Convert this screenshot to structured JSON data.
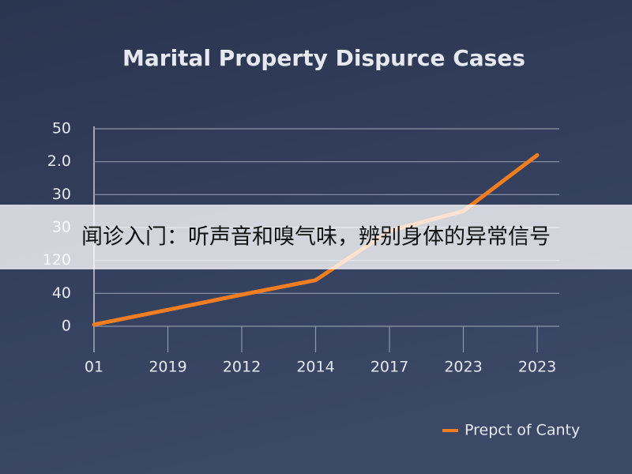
{
  "chart_data": {
    "type": "line",
    "title": "Marital Property Dispurce Cases",
    "categories": [
      "01",
      "2019",
      "2012",
      "2014",
      "2017",
      "2023",
      "2023"
    ],
    "series": [
      {
        "name": "Prepct of Canty",
        "color": "#f07d22",
        "values": [
          0.5,
          5,
          9.6,
          14,
          29,
          35,
          52
        ]
      }
    ],
    "ylim": [
      0,
      60
    ],
    "yticks": [
      0,
      {
        "value": 10,
        "label": "40"
      },
      {
        "value": 20,
        "label": "120"
      },
      30,
      {
        "value": 40,
        "label": "30"
      },
      {
        "value": 50,
        "label": "2.0"
      },
      {
        "value": 60,
        "label": "50"
      }
    ],
    "grid": true,
    "legend": "bottom-right"
  },
  "overlay_caption": "闻诊入门：听声音和嗅气味，辨别身体的异常信号"
}
